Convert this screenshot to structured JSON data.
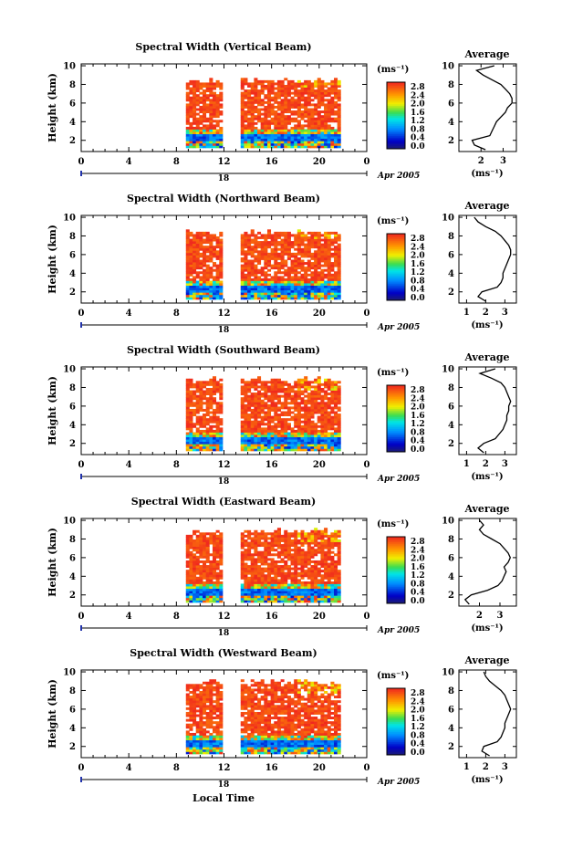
{
  "figure": {
    "shared_xlabel": "Local Time",
    "date_label": "Apr 2005",
    "day_label": "18",
    "units_label": "(ms⁻¹)",
    "average_title": "Average"
  },
  "chart_data": [
    {
      "type": "heatmap",
      "title": "Spectral Width (Vertical Beam)",
      "ylabel": "Height (km)",
      "xticks": [
        "0",
        "4",
        "8",
        "12",
        "16",
        "20",
        "0"
      ],
      "yticks": [
        "2",
        "4",
        "6",
        "8",
        "10"
      ],
      "xlim": [
        0,
        24
      ],
      "ylim": [
        0.8,
        10.2
      ],
      "colorbar": {
        "ticks": [
          "2.8",
          "2.4",
          "2.0",
          "1.6",
          "1.2",
          "0.8",
          "0.4",
          "0.0"
        ],
        "range": [
          0.0,
          2.8
        ]
      },
      "data_blocks": [
        [
          8.8,
          11.8
        ],
        [
          13.4,
          21.8
        ]
      ],
      "top_height": 8.0,
      "profile": {
        "xticks": [
          "2",
          "3"
        ],
        "xlim": [
          1.0,
          3.6
        ],
        "xlabel": "(ms⁻¹)",
        "height": [
          1.0,
          1.5,
          2.0,
          2.5,
          3.0,
          3.5,
          4.0,
          4.5,
          5.0,
          5.5,
          6.0,
          6.5,
          7.0,
          7.5,
          8.0,
          8.5,
          9.0,
          9.5,
          10.0
        ],
        "width": [
          2.2,
          1.7,
          1.6,
          2.4,
          2.5,
          2.6,
          2.7,
          2.9,
          3.1,
          3.2,
          3.4,
          3.4,
          3.3,
          3.1,
          2.9,
          2.5,
          2.1,
          1.8,
          2.6
        ]
      }
    },
    {
      "type": "heatmap",
      "title": "Spectral Width (Northward Beam)",
      "ylabel": "Height (km)",
      "xticks": [
        "0",
        "4",
        "8",
        "12",
        "16",
        "20",
        "0"
      ],
      "yticks": [
        "2",
        "4",
        "6",
        "8",
        "10"
      ],
      "xlim": [
        0,
        24
      ],
      "ylim": [
        0.8,
        10.2
      ],
      "colorbar": {
        "ticks": [
          "2.8",
          "2.4",
          "2.0",
          "1.6",
          "1.2",
          "0.8",
          "0.4",
          "0.0"
        ],
        "range": [
          0.0,
          2.8
        ]
      },
      "data_blocks": [
        [
          8.8,
          11.8
        ],
        [
          13.4,
          21.8
        ]
      ],
      "top_height": 8.0,
      "profile": {
        "xticks": [
          "1",
          "2",
          "3"
        ],
        "xlim": [
          0.6,
          3.6
        ],
        "xlabel": "(ms⁻¹)",
        "height": [
          1.0,
          1.5,
          2.0,
          2.5,
          3.0,
          3.5,
          4.0,
          4.5,
          5.0,
          5.5,
          6.0,
          6.5,
          7.0,
          7.5,
          8.0,
          8.5,
          9.0,
          9.5,
          10.0
        ],
        "width": [
          2.0,
          1.6,
          1.8,
          2.6,
          2.8,
          2.9,
          2.9,
          3.0,
          3.1,
          3.2,
          3.3,
          3.3,
          3.2,
          3.0,
          2.8,
          2.5,
          2.0,
          1.6,
          1.4
        ]
      }
    },
    {
      "type": "heatmap",
      "title": "Spectral Width (Southward Beam)",
      "ylabel": "Height (km)",
      "xticks": [
        "0",
        "4",
        "8",
        "12",
        "16",
        "20",
        "0"
      ],
      "yticks": [
        "2",
        "4",
        "6",
        "8",
        "10"
      ],
      "xlim": [
        0,
        24
      ],
      "ylim": [
        0.8,
        10.2
      ],
      "colorbar": {
        "ticks": [
          "2.8",
          "2.4",
          "2.0",
          "1.6",
          "1.2",
          "0.8",
          "0.4",
          "0.0"
        ],
        "range": [
          0.0,
          2.8
        ]
      },
      "data_blocks": [
        [
          8.8,
          11.8
        ],
        [
          13.4,
          21.8
        ]
      ],
      "top_height": 8.5,
      "profile": {
        "xticks": [
          "1",
          "2",
          "3"
        ],
        "xlim": [
          0.6,
          3.6
        ],
        "xlabel": "(ms⁻¹)",
        "height": [
          1.0,
          1.5,
          2.0,
          2.5,
          3.0,
          3.5,
          4.0,
          4.5,
          5.0,
          5.5,
          6.0,
          6.5,
          7.0,
          7.5,
          8.0,
          8.5,
          9.0,
          9.5,
          10.0
        ],
        "width": [
          1.9,
          1.6,
          1.9,
          2.5,
          2.7,
          2.9,
          3.0,
          3.1,
          3.1,
          3.2,
          3.2,
          3.3,
          3.2,
          3.1,
          3.0,
          2.8,
          2.3,
          1.7,
          2.5
        ]
      }
    },
    {
      "type": "heatmap",
      "title": "Spectral Width (Eastward Beam)",
      "ylabel": "Height (km)",
      "xticks": [
        "0",
        "4",
        "8",
        "12",
        "16",
        "20",
        "0"
      ],
      "yticks": [
        "2",
        "4",
        "6",
        "8",
        "10"
      ],
      "xlim": [
        0,
        24
      ],
      "ylim": [
        0.8,
        10.2
      ],
      "colorbar": {
        "ticks": [
          "2.8",
          "2.4",
          "2.0",
          "1.6",
          "1.2",
          "0.8",
          "0.4",
          "0.0"
        ],
        "range": [
          0.0,
          2.8
        ]
      },
      "data_blocks": [
        [
          8.8,
          11.8
        ],
        [
          13.4,
          21.8
        ]
      ],
      "top_height": 8.5,
      "profile": {
        "xticks": [
          "2",
          "3"
        ],
        "xlim": [
          1.0,
          3.8
        ],
        "xlabel": "(ms⁻¹)",
        "height": [
          1.0,
          1.5,
          2.0,
          2.5,
          3.0,
          3.5,
          4.0,
          4.5,
          5.0,
          5.5,
          6.0,
          6.5,
          7.0,
          7.5,
          8.0,
          8.5,
          9.0,
          9.5,
          10.0
        ],
        "width": [
          1.5,
          1.3,
          1.6,
          2.4,
          2.9,
          3.1,
          3.2,
          3.3,
          3.2,
          3.4,
          3.5,
          3.4,
          3.2,
          3.0,
          2.6,
          2.2,
          2.0,
          2.2,
          2.0
        ]
      }
    },
    {
      "type": "heatmap",
      "title": "Spectral Width (Westward Beam)",
      "ylabel": "Height (km)",
      "xticks": [
        "0",
        "4",
        "8",
        "12",
        "16",
        "20",
        "0"
      ],
      "yticks": [
        "2",
        "4",
        "6",
        "8",
        "10"
      ],
      "xlim": [
        0,
        24
      ],
      "ylim": [
        0.8,
        10.2
      ],
      "colorbar": {
        "ticks": [
          "2.8",
          "2.4",
          "2.0",
          "1.6",
          "1.2",
          "0.8",
          "0.4",
          "0.0"
        ],
        "range": [
          0.0,
          2.8
        ]
      },
      "data_blocks": [
        [
          8.8,
          11.8
        ],
        [
          13.4,
          21.8
        ]
      ],
      "top_height": 8.5,
      "profile": {
        "xticks": [
          "1",
          "2",
          "3"
        ],
        "xlim": [
          0.6,
          3.6
        ],
        "xlabel": "(ms⁻¹)",
        "height": [
          1.0,
          1.5,
          2.0,
          2.5,
          3.0,
          3.5,
          4.0,
          4.5,
          5.0,
          5.5,
          6.0,
          6.5,
          7.0,
          7.5,
          8.0,
          8.5,
          9.0,
          9.5,
          10.0
        ],
        "width": [
          2.2,
          1.8,
          1.9,
          2.6,
          2.8,
          2.9,
          3.0,
          3.0,
          3.1,
          3.2,
          3.3,
          3.2,
          3.1,
          3.0,
          2.8,
          2.5,
          2.2,
          2.0,
          1.9
        ]
      }
    }
  ]
}
